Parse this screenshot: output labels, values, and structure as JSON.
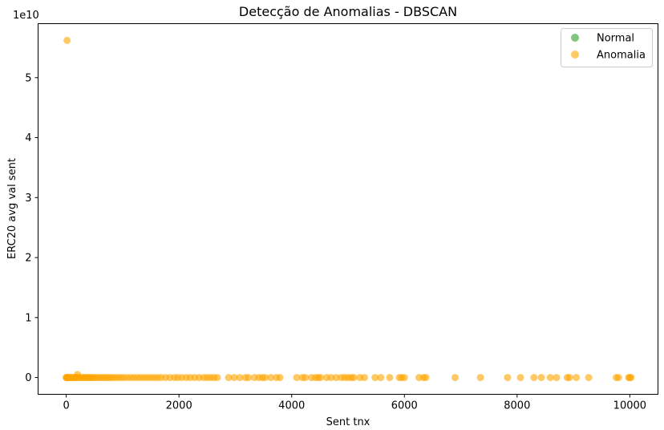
{
  "chart_data": {
    "type": "scatter",
    "title": "Detecção de Anomalias - DBSCAN",
    "xlabel": "Sent tnx",
    "ylabel": "ERC20 avg val sent",
    "offset_text": "1e10",
    "xlim": [
      -500,
      10500
    ],
    "ylim": [
      -0.28,
      5.9
    ],
    "y_scale_multiplier": 10000000000,
    "x_ticks": [
      0,
      2000,
      4000,
      6000,
      8000,
      10000
    ],
    "x_tick_labels": [
      "0",
      "2000",
      "4000",
      "6000",
      "8000",
      "10000"
    ],
    "y_ticks": [
      0,
      1,
      2,
      3,
      4,
      5
    ],
    "y_tick_labels": [
      "0",
      "1",
      "2",
      "3",
      "4",
      "5"
    ],
    "grid": false,
    "legend_position": "top-right",
    "series": [
      {
        "name": "Normal",
        "color": "#2ca02c",
        "points": []
      },
      {
        "name": "Anomalia",
        "color": "#ffa500",
        "points": [
          [
            15,
            5.62
          ],
          [
            200,
            0.05
          ],
          [
            0,
            0
          ],
          [
            5,
            0
          ],
          [
            10,
            0
          ],
          [
            20,
            0
          ],
          [
            30,
            0
          ],
          [
            45,
            0
          ],
          [
            60,
            0
          ],
          [
            80,
            0
          ],
          [
            100,
            0
          ],
          [
            120,
            0
          ],
          [
            140,
            0
          ],
          [
            160,
            0
          ],
          [
            180,
            0
          ],
          [
            200,
            0
          ],
          [
            230,
            0
          ],
          [
            260,
            0
          ],
          [
            290,
            0
          ],
          [
            320,
            0
          ],
          [
            350,
            0
          ],
          [
            380,
            0
          ],
          [
            410,
            0
          ],
          [
            440,
            0
          ],
          [
            470,
            0
          ],
          [
            500,
            0
          ],
          [
            540,
            0
          ],
          [
            580,
            0
          ],
          [
            620,
            0
          ],
          [
            660,
            0
          ],
          [
            700,
            0
          ],
          [
            740,
            0
          ],
          [
            780,
            0
          ],
          [
            820,
            0
          ],
          [
            870,
            0
          ],
          [
            920,
            0
          ],
          [
            970,
            0
          ],
          [
            1020,
            0
          ],
          [
            1080,
            0
          ],
          [
            1140,
            0
          ],
          [
            1200,
            0
          ],
          [
            1260,
            0
          ],
          [
            1320,
            0
          ],
          [
            1380,
            0
          ],
          [
            1440,
            0
          ],
          [
            1500,
            0
          ],
          [
            1560,
            0
          ],
          [
            1620,
            0
          ],
          [
            1680,
            0
          ],
          [
            1760,
            0
          ],
          [
            1840,
            0
          ],
          [
            1920,
            0
          ],
          [
            1980,
            0
          ],
          [
            2050,
            0
          ],
          [
            2130,
            0
          ],
          [
            2200,
            0
          ],
          [
            2280,
            0
          ],
          [
            2360,
            0
          ],
          [
            2440,
            0
          ],
          [
            2500,
            0
          ],
          [
            2560,
            0
          ],
          [
            2620,
            0
          ],
          [
            2680,
            0
          ],
          [
            2880,
            0
          ],
          [
            2980,
            0
          ],
          [
            3080,
            0
          ],
          [
            3180,
            0
          ],
          [
            3230,
            0
          ],
          [
            3340,
            0
          ],
          [
            3420,
            0
          ],
          [
            3480,
            0
          ],
          [
            3530,
            0
          ],
          [
            3630,
            0
          ],
          [
            3730,
            0
          ],
          [
            3790,
            0
          ],
          [
            4090,
            0
          ],
          [
            4190,
            0
          ],
          [
            4240,
            0
          ],
          [
            4350,
            0
          ],
          [
            4420,
            0
          ],
          [
            4470,
            0
          ],
          [
            4510,
            0
          ],
          [
            4620,
            0
          ],
          [
            4700,
            0
          ],
          [
            4790,
            0
          ],
          [
            4880,
            0
          ],
          [
            4940,
            0
          ],
          [
            5000,
            0
          ],
          [
            5060,
            0
          ],
          [
            5100,
            0
          ],
          [
            5210,
            0
          ],
          [
            5290,
            0
          ],
          [
            5480,
            0
          ],
          [
            5580,
            0
          ],
          [
            5740,
            0
          ],
          [
            5910,
            0
          ],
          [
            5950,
            0
          ],
          [
            6000,
            0
          ],
          [
            6260,
            0
          ],
          [
            6340,
            0
          ],
          [
            6380,
            0
          ],
          [
            6900,
            0
          ],
          [
            7350,
            0
          ],
          [
            7830,
            0
          ],
          [
            8060,
            0
          ],
          [
            8300,
            0
          ],
          [
            8430,
            0
          ],
          [
            8590,
            0
          ],
          [
            8700,
            0
          ],
          [
            8890,
            0
          ],
          [
            8930,
            0
          ],
          [
            9050,
            0
          ],
          [
            9270,
            0
          ],
          [
            9760,
            0
          ],
          [
            9800,
            0
          ],
          [
            9980,
            0
          ],
          [
            10000,
            0
          ],
          [
            10020,
            0
          ]
        ]
      }
    ]
  }
}
